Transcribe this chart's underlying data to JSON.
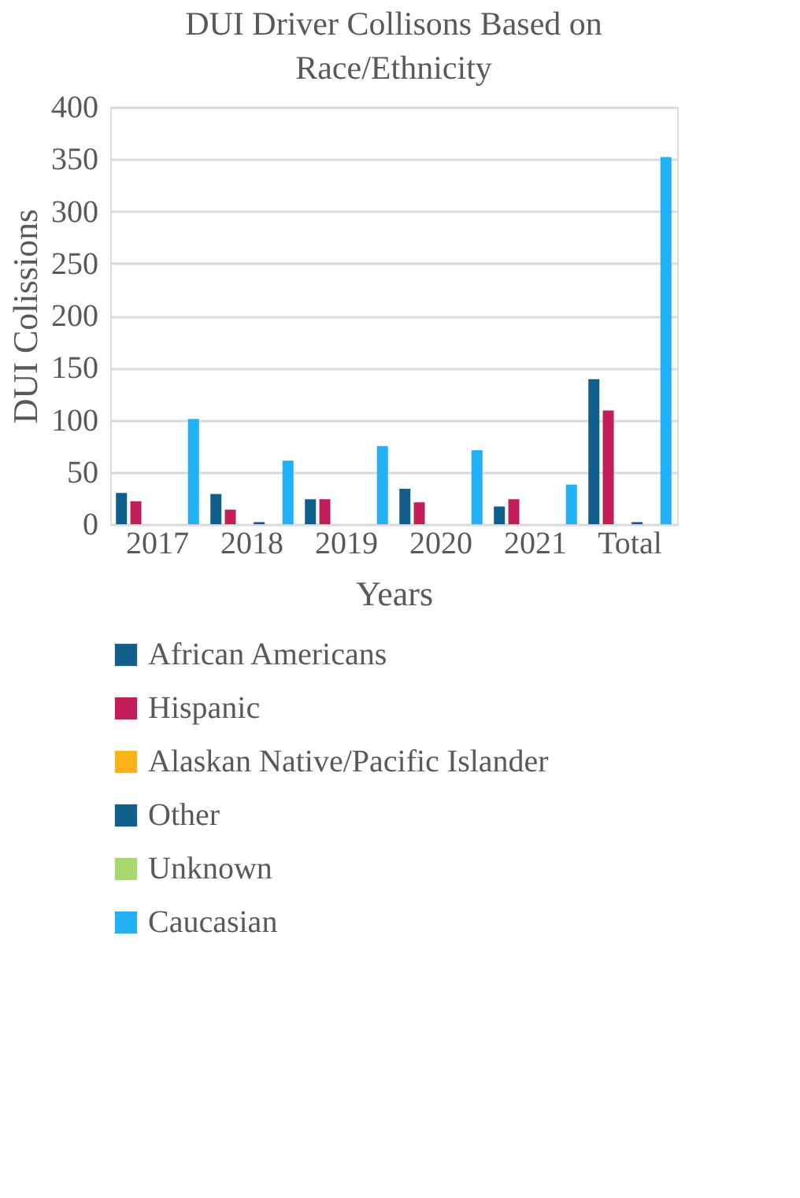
{
  "chart_data": {
    "type": "bar",
    "title": "DUI Driver Collisons Based on Race/Ethnicity",
    "xlabel": "Years",
    "ylabel": "DUI Colissions",
    "categories": [
      "2017",
      "2018",
      "2019",
      "2020",
      "2021",
      "Total"
    ],
    "series": [
      {
        "name": "African Americans",
        "color": "#0f5e8c",
        "values": [
          30,
          29,
          24,
          34,
          17,
          139
        ]
      },
      {
        "name": "Hispanic",
        "color": "#c41e5a",
        "values": [
          22,
          14,
          24,
          21,
          24,
          109
        ]
      },
      {
        "name": "Alaskan Native/Pacific Islander",
        "color": "#ffb119",
        "values": [
          0,
          0,
          0,
          0,
          0,
          0
        ]
      },
      {
        "name": "Other",
        "color": "#0f5e8c",
        "values": [
          0,
          2,
          0,
          0,
          0,
          2
        ]
      },
      {
        "name": "Unknown",
        "color": "#a6d86e",
        "values": [
          0,
          0,
          0,
          0,
          0,
          0
        ]
      },
      {
        "name": "Caucasian",
        "color": "#21b1f7",
        "values": [
          101,
          61,
          75,
          71,
          38,
          352
        ]
      }
    ],
    "ylim": [
      0,
      400
    ],
    "yticks": [
      0,
      50,
      100,
      150,
      200,
      250,
      300,
      350,
      400
    ],
    "grid": "y",
    "legend": "bottom"
  }
}
